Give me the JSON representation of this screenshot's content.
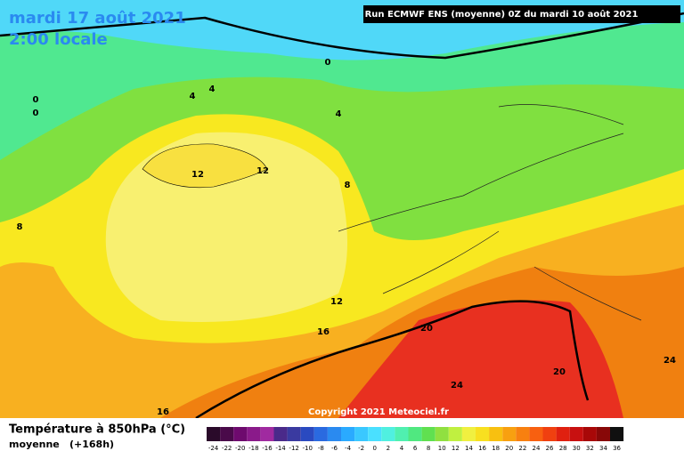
{
  "header": {
    "date": "mardi 17 août 2021",
    "time": "2:00 locale",
    "run": "Run ECMWF ENS (moyenne) 0Z du mardi 10 août 2021"
  },
  "copyright": "Copyright 2021 Meteociel.fr",
  "contour_labels": [
    "0",
    "0",
    "0",
    "4",
    "4",
    "4",
    "8",
    "8",
    "12",
    "12",
    "12",
    "16",
    "16",
    "20",
    "20",
    "24",
    "24"
  ],
  "legend": {
    "title": "Température à 850hPa (°C)",
    "subtitle": "moyenne",
    "range": "(+168h)",
    "labels": [
      -24,
      -22,
      -20,
      -18,
      -16,
      -14,
      -12,
      -10,
      -8,
      -6,
      -4,
      -2,
      0,
      2,
      4,
      6,
      8,
      10,
      12,
      14,
      16,
      18,
      20,
      22,
      24,
      26,
      28,
      30,
      32,
      34,
      36
    ],
    "colors": [
      "#2a0a2a",
      "#4a0a4a",
      "#6e0a6e",
      "#8a1a8a",
      "#a02aa0",
      "#4a2a8a",
      "#3a3aa0",
      "#2a4ac0",
      "#2a6ae0",
      "#2a8af0",
      "#2aaaff",
      "#3ac8ff",
      "#4ae0ff",
      "#50f0e0",
      "#50f0b0",
      "#50e880",
      "#60e050",
      "#90e040",
      "#c0f040",
      "#f0f040",
      "#f8e020",
      "#f8c010",
      "#f8a010",
      "#f88010",
      "#f86010",
      "#f04010",
      "#e02010",
      "#c81010",
      "#a80808",
      "#880808",
      "#101010"
    ]
  }
}
